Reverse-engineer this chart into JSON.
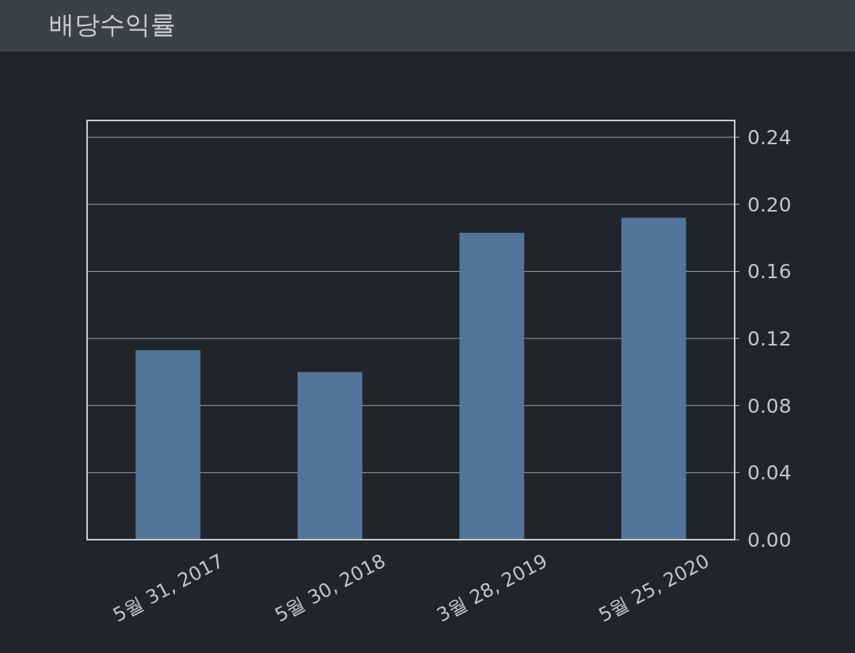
{
  "chart_data": {
    "type": "bar",
    "title": "배당수익률",
    "categories": [
      "5월 31, 2017",
      "5월 30, 2018",
      "3월 28, 2019",
      "5월 25, 2020"
    ],
    "values": [
      0.113,
      0.1,
      0.183,
      0.192
    ],
    "color": "#54759a",
    "ylim": [
      0,
      0.25
    ],
    "yticks": [
      {
        "value": 0,
        "label": "0.00"
      },
      {
        "value": 0.04,
        "label": "0.04"
      },
      {
        "value": 0.08,
        "label": "0.08"
      },
      {
        "value": 0.12,
        "label": "0.12"
      },
      {
        "value": 0.16,
        "label": "0.16"
      },
      {
        "value": 0.2,
        "label": "0.20"
      },
      {
        "value": 0.24,
        "label": "0.24"
      }
    ],
    "grid": "y"
  }
}
